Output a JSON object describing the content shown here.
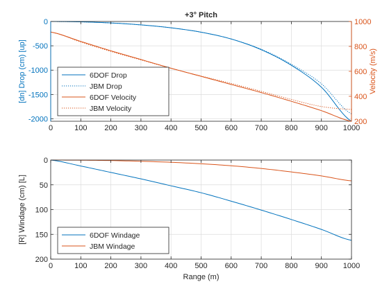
{
  "chart_data": [
    {
      "type": "line",
      "title": "+3° Pitch",
      "xlabel": "",
      "ylabel_left": "[dn] Drop (cm) [up]",
      "ylabel_right": "Velocity (m/s)",
      "xlim": [
        0,
        1000
      ],
      "ylim_left": [
        -2050,
        0
      ],
      "ylim_right": [
        200,
        1000
      ],
      "x_ticks": [
        "0",
        "100",
        "200",
        "300",
        "400",
        "500",
        "600",
        "700",
        "800",
        "900",
        "1000"
      ],
      "y_ticks_left": [
        "0",
        "-500",
        "-1000",
        "-1500",
        "-2000"
      ],
      "y_ticks_right": [
        "1000",
        "800",
        "600",
        "400",
        "200"
      ],
      "grid": true,
      "legend_position": "bottom-left",
      "x": [
        0,
        100,
        200,
        300,
        400,
        500,
        600,
        700,
        800,
        900,
        1000
      ],
      "series": [
        {
          "name": "6DOF Drop",
          "axis": "left",
          "style": "solid",
          "color": "#0072BD",
          "values": [
            0,
            -8,
            -30,
            -70,
            -130,
            -220,
            -360,
            -580,
            -900,
            -1350,
            -2050
          ]
        },
        {
          "name": "JBM Drop",
          "axis": "left",
          "style": "dotted",
          "color": "#0072BD",
          "values": [
            0,
            -8,
            -30,
            -70,
            -130,
            -220,
            -360,
            -570,
            -880,
            -1280,
            -1900
          ]
        },
        {
          "name": "6DOF Velocity",
          "axis": "right",
          "style": "solid",
          "color": "#D95319",
          "values": [
            915,
            840,
            765,
            695,
            625,
            560,
            495,
            430,
            360,
            285,
            200
          ]
        },
        {
          "name": "JBM Velocity",
          "axis": "right",
          "style": "dotted",
          "color": "#D95319",
          "values": [
            915,
            835,
            760,
            692,
            625,
            563,
            503,
            440,
            375,
            318,
            295
          ]
        }
      ]
    },
    {
      "type": "line",
      "title": "",
      "xlabel": "Range (m)",
      "ylabel": "[R] Windage (cm) [L]",
      "xlim": [
        0,
        1000
      ],
      "ylim": [
        0,
        200
      ],
      "y_reversed": true,
      "x_ticks": [
        "0",
        "100",
        "200",
        "300",
        "400",
        "500",
        "600",
        "700",
        "800",
        "900",
        "1000"
      ],
      "y_ticks": [
        "0",
        "50",
        "100",
        "150",
        "200"
      ],
      "grid": true,
      "legend_position": "bottom-left",
      "x": [
        0,
        100,
        200,
        300,
        400,
        500,
        600,
        700,
        800,
        900,
        1000
      ],
      "series": [
        {
          "name": "6DOF Windage",
          "style": "solid",
          "color": "#0072BD",
          "values": [
            0,
            12,
            25,
            38,
            52,
            66,
            83,
            101,
            120,
            140,
            162
          ]
        },
        {
          "name": "JBM Windage",
          "style": "solid",
          "color": "#D95319",
          "values": [
            0,
            0.3,
            1,
            2.5,
            4.5,
            7.5,
            11.5,
            17,
            24,
            32,
            42
          ]
        }
      ]
    }
  ]
}
